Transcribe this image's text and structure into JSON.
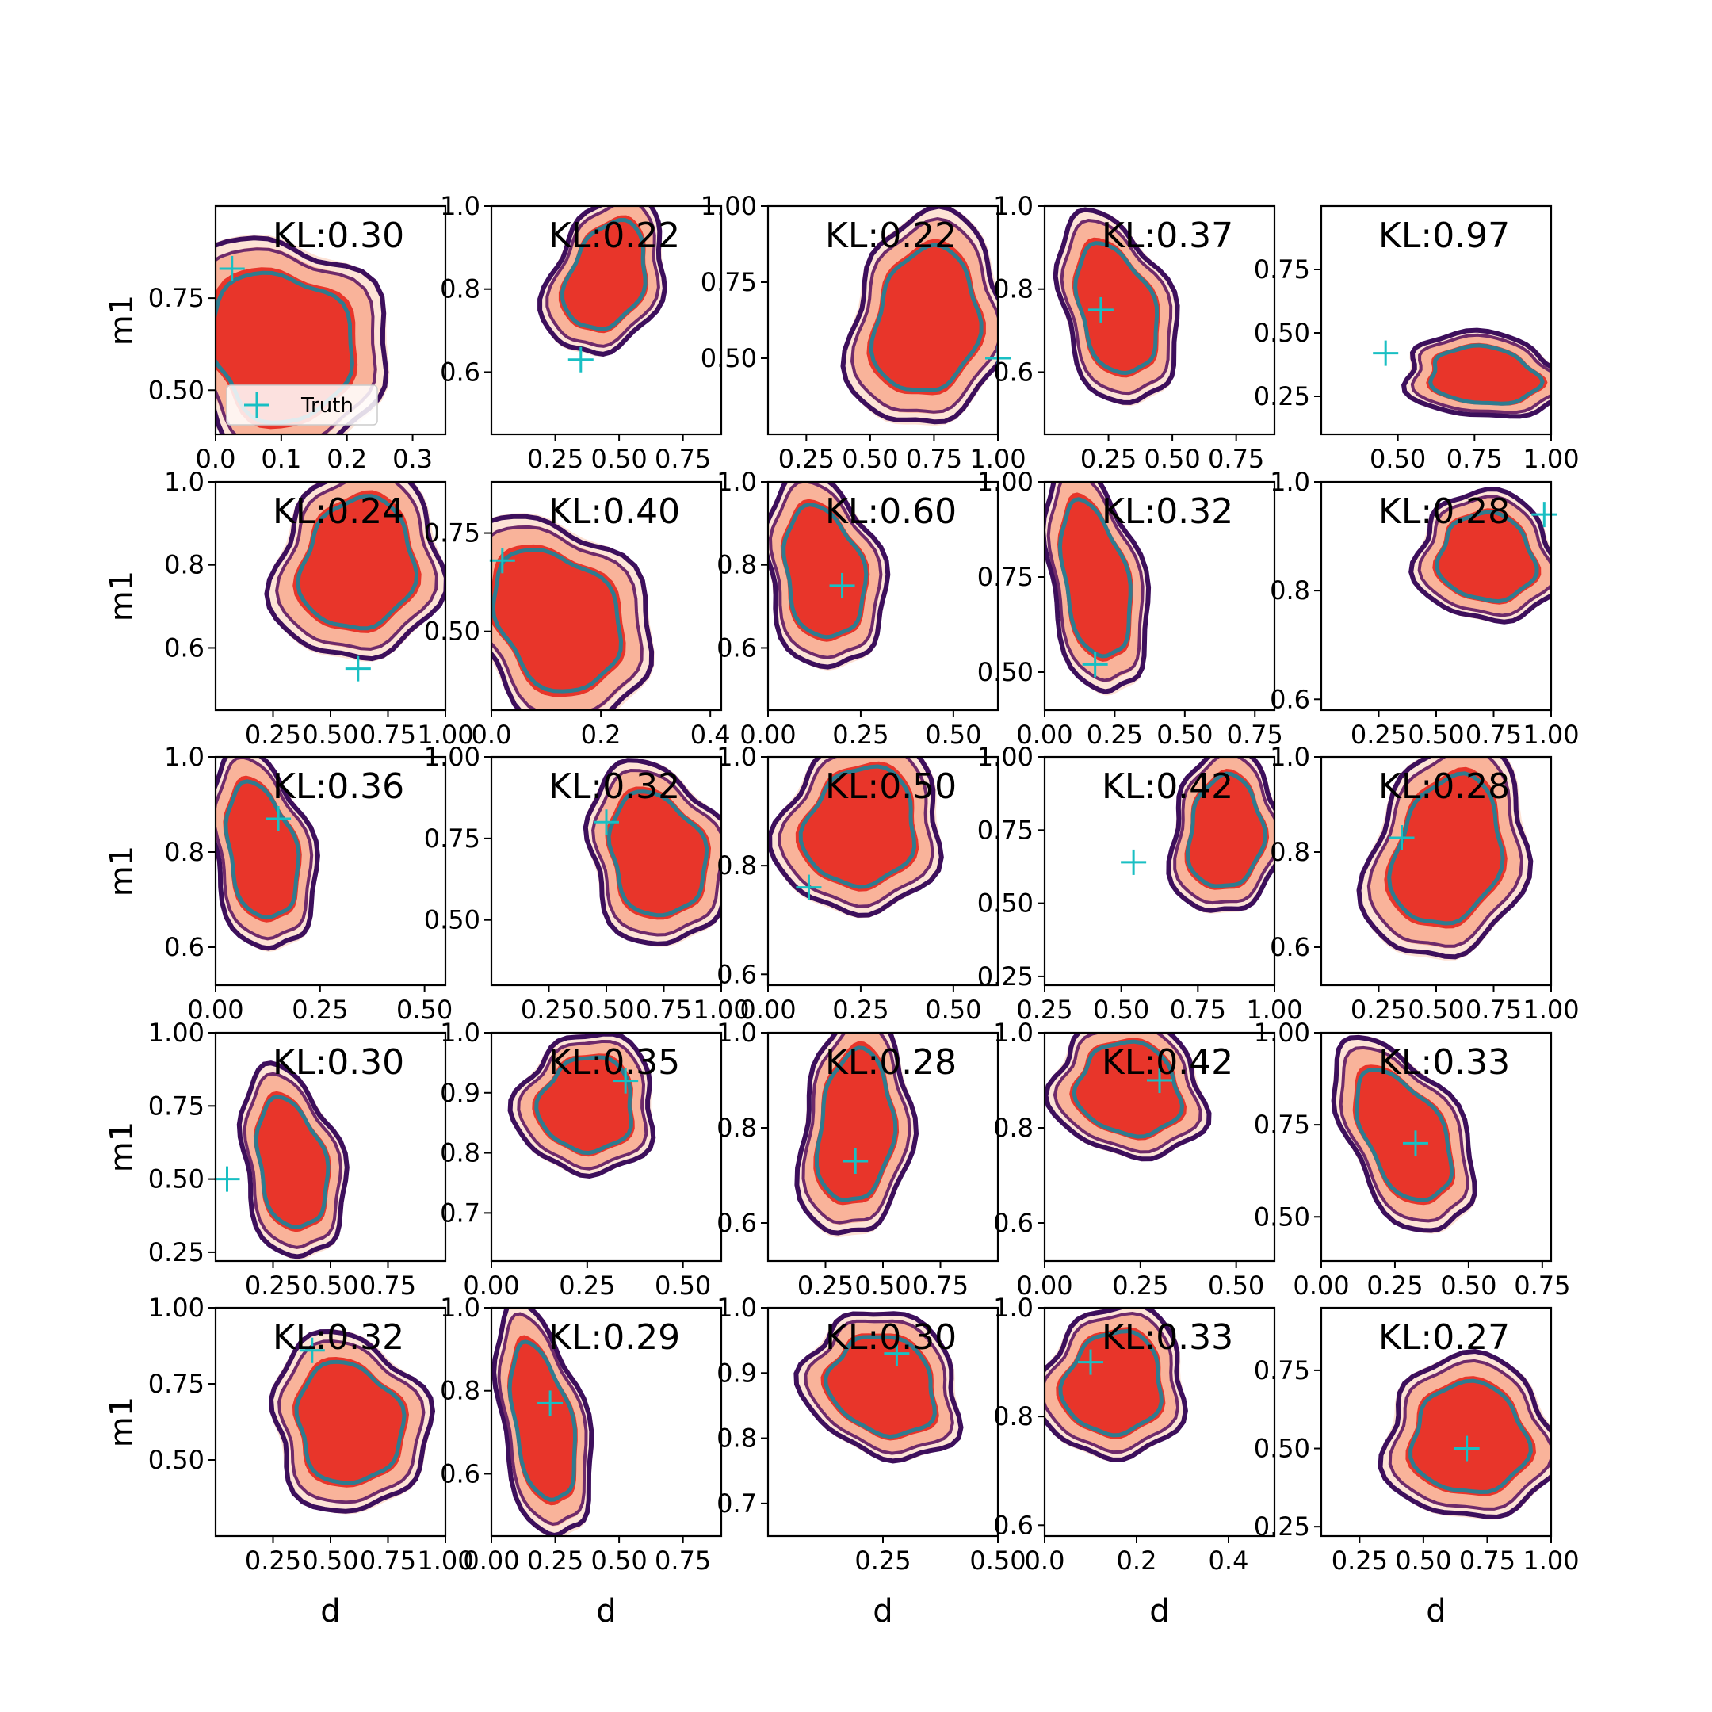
{
  "legend": {
    "label": "Truth"
  },
  "colors": {
    "fill_outer": "#fde3d6",
    "fill_mid": "#f9b39a",
    "fill_inner": "#e8352a",
    "contour_outer": "#3d0f5c",
    "contour_mid": "#6e2a6b",
    "contour_inner": "#2f7b8f",
    "truth": "#19bfc3"
  },
  "chart_data": {
    "type": "scatter",
    "description_rows": 5,
    "description_cols": 5,
    "xlabel": "d",
    "ylabel": "m1",
    "panels": [
      {
        "kl": "KL:0.30",
        "xlim": [
          0,
          0.35
        ],
        "ylim": [
          0.38,
          1.0
        ],
        "xticks": [
          0.0,
          0.1,
          0.2,
          0.3
        ],
        "xticklabels": [
          "0.0",
          "0.1",
          "0.2",
          "0.3"
        ],
        "yticks": [
          0.5,
          0.75
        ],
        "yticklabels": [
          "0.50",
          "0.75"
        ],
        "truth": [
          0.025,
          0.83
        ],
        "blob": [
          0.1,
          0.62,
          0.13,
          0.26,
          -0.6
        ]
      },
      {
        "kl": "KL:0.22",
        "xlim": [
          0,
          0.9
        ],
        "ylim": [
          0.45,
          1.0
        ],
        "xticks": [
          0.25,
          0.5,
          0.75
        ],
        "xticklabels": [
          "0.25",
          "0.50",
          "0.75"
        ],
        "yticks": [
          0.6,
          0.8,
          1.0
        ],
        "yticklabels": [
          "0.6",
          "0.8",
          "1.0"
        ],
        "truth": [
          0.35,
          0.63
        ],
        "blob": [
          0.45,
          0.83,
          0.18,
          0.17,
          0.4
        ]
      },
      {
        "kl": "KL:0.22",
        "xlim": [
          0.1,
          1.0
        ],
        "ylim": [
          0.25,
          1.0
        ],
        "xticks": [
          0.25,
          0.5,
          0.75,
          1.0
        ],
        "xticklabels": [
          "0.25",
          "0.50",
          "0.75",
          "1.00"
        ],
        "yticks": [
          0.5,
          0.75,
          1.0
        ],
        "yticklabels": [
          "0.50",
          "0.75",
          "1.00"
        ],
        "truth": [
          1.0,
          0.5
        ],
        "blob": [
          0.72,
          0.62,
          0.25,
          0.3,
          0.2
        ]
      },
      {
        "kl": "KL:0.37",
        "xlim": [
          0,
          0.9
        ],
        "ylim": [
          0.45,
          1.0
        ],
        "xticks": [
          0.25,
          0.5,
          0.75
        ],
        "xticklabels": [
          "0.25",
          "0.50",
          "0.75"
        ],
        "yticks": [
          0.6,
          0.8,
          1.0
        ],
        "yticklabels": [
          "0.6",
          "0.8",
          "1.0"
        ],
        "truth": [
          0.22,
          0.75
        ],
        "blob": [
          0.28,
          0.75,
          0.18,
          0.2,
          -0.3
        ]
      },
      {
        "kl": "KL:0.97",
        "xlim": [
          0.25,
          1.0
        ],
        "ylim": [
          0.1,
          1.0
        ],
        "xticks": [
          0.5,
          0.75,
          1.0
        ],
        "xticklabels": [
          "0.50",
          "0.75",
          "1.00"
        ],
        "yticks": [
          0.25,
          0.5,
          0.75
        ],
        "yticklabels": [
          "0.25",
          "0.50",
          "0.75"
        ],
        "truth": [
          0.46,
          0.42
        ],
        "blob": [
          0.78,
          0.33,
          0.22,
          0.14,
          0.1
        ]
      },
      {
        "kl": "KL:0.24",
        "xlim": [
          0,
          1.0
        ],
        "ylim": [
          0.45,
          1.0
        ],
        "xticks": [
          0.25,
          0.5,
          0.75,
          1.0
        ],
        "xticklabels": [
          "0.25",
          "0.50",
          "0.75",
          "1.00"
        ],
        "yticks": [
          0.6,
          0.8,
          1.0
        ],
        "yticklabels": [
          "0.6",
          "0.8",
          "1.0"
        ],
        "truth": [
          0.62,
          0.55
        ],
        "blob": [
          0.62,
          0.8,
          0.3,
          0.2,
          0.3
        ]
      },
      {
        "kl": "KL:0.40",
        "xlim": [
          0,
          0.42
        ],
        "ylim": [
          0.3,
          0.88
        ],
        "xticks": [
          0.0,
          0.2,
          0.4
        ],
        "xticklabels": [
          "0.0",
          "0.2",
          "0.4"
        ],
        "yticks": [
          0.5,
          0.75
        ],
        "yticklabels": [
          "0.50",
          "0.75"
        ],
        "truth": [
          0.02,
          0.68
        ],
        "blob": [
          0.12,
          0.53,
          0.13,
          0.24,
          -0.6
        ]
      },
      {
        "kl": "KL:0.60",
        "xlim": [
          0,
          0.62
        ],
        "ylim": [
          0.45,
          1.0
        ],
        "xticks": [
          0.0,
          0.25,
          0.5
        ],
        "xticklabels": [
          "0.00",
          "0.25",
          "0.50"
        ],
        "yticks": [
          0.6,
          0.8,
          1.0
        ],
        "yticklabels": [
          "0.6",
          "0.8",
          "1.0"
        ],
        "truth": [
          0.2,
          0.75
        ],
        "blob": [
          0.15,
          0.78,
          0.13,
          0.2,
          -0.2
        ]
      },
      {
        "kl": "KL:0.32",
        "xlim": [
          0,
          0.82
        ],
        "ylim": [
          0.4,
          1.0
        ],
        "xticks": [
          0.0,
          0.25,
          0.5,
          0.75
        ],
        "xticklabels": [
          "0.00",
          "0.25",
          "0.50",
          "0.75"
        ],
        "yticks": [
          0.5,
          0.75,
          1.0
        ],
        "yticklabels": [
          "0.50",
          "0.75",
          "1.00"
        ],
        "truth": [
          0.18,
          0.52
        ],
        "blob": [
          0.18,
          0.74,
          0.14,
          0.26,
          -0.2
        ]
      },
      {
        "kl": "KL:0.28",
        "xlim": [
          0,
          1.0
        ],
        "ylim": [
          0.58,
          1.0
        ],
        "xticks": [
          0.25,
          0.5,
          0.75,
          1.0
        ],
        "xticklabels": [
          "0.25",
          "0.50",
          "0.75",
          "1.00"
        ],
        "yticks": [
          0.6,
          0.8,
          1.0
        ],
        "yticklabels": [
          "0.6",
          "0.8",
          "1.0"
        ],
        "truth": [
          0.97,
          0.94
        ],
        "blob": [
          0.72,
          0.86,
          0.26,
          0.1,
          0.3
        ]
      },
      {
        "kl": "KL:0.36",
        "xlim": [
          0,
          0.55
        ],
        "ylim": [
          0.52,
          1.0
        ],
        "xticks": [
          0.0,
          0.25,
          0.5
        ],
        "xticklabels": [
          "0.00",
          "0.25",
          "0.50"
        ],
        "yticks": [
          0.6,
          0.8,
          1.0
        ],
        "yticklabels": [
          "0.6",
          "0.8",
          "1.0"
        ],
        "truth": [
          0.15,
          0.87
        ],
        "blob": [
          0.11,
          0.8,
          0.1,
          0.18,
          -0.2
        ]
      },
      {
        "kl": "KL:0.32",
        "xlim": [
          0,
          1.0
        ],
        "ylim": [
          0.3,
          1.0
        ],
        "xticks": [
          0.25,
          0.5,
          0.75,
          1.0
        ],
        "xticklabels": [
          "0.25",
          "0.50",
          "0.75",
          "1.00"
        ],
        "yticks": [
          0.5,
          0.75,
          1.0
        ],
        "yticklabels": [
          "0.50",
          "0.75",
          "1.00"
        ],
        "truth": [
          0.5,
          0.8
        ],
        "blob": [
          0.72,
          0.7,
          0.25,
          0.24,
          -0.3
        ]
      },
      {
        "kl": "KL:0.50",
        "xlim": [
          0,
          0.62
        ],
        "ylim": [
          0.58,
          1.0
        ],
        "xticks": [
          0.0,
          0.25,
          0.5
        ],
        "xticklabels": [
          "0.00",
          "0.25",
          "0.50"
        ],
        "yticks": [
          0.6,
          0.8,
          1.0
        ],
        "yticklabels": [
          "0.6",
          "0.8",
          "1.0"
        ],
        "truth": [
          0.11,
          0.76
        ],
        "blob": [
          0.25,
          0.87,
          0.18,
          0.14,
          0.5
        ]
      },
      {
        "kl": "KL:0.42",
        "xlim": [
          0.25,
          1.0
        ],
        "ylim": [
          0.22,
          1.0
        ],
        "xticks": [
          0.25,
          0.5,
          0.75,
          1.0
        ],
        "xticklabels": [
          "0.25",
          "0.50",
          "0.75",
          "1.00"
        ],
        "yticks": [
          0.25,
          0.5,
          0.75,
          1.0
        ],
        "yticklabels": [
          "0.25",
          "0.50",
          "0.75",
          "1.00"
        ],
        "truth": [
          0.54,
          0.64
        ],
        "blob": [
          0.84,
          0.74,
          0.15,
          0.24,
          0.1
        ]
      },
      {
        "kl": "KL:0.28",
        "xlim": [
          0,
          1.0
        ],
        "ylim": [
          0.52,
          1.0
        ],
        "xticks": [
          0.25,
          0.5,
          0.75,
          1.0
        ],
        "xticklabels": [
          "0.25",
          "0.50",
          "0.75",
          "1.00"
        ],
        "yticks": [
          0.6,
          0.8,
          1.0
        ],
        "yticklabels": [
          "0.6",
          "0.8",
          "1.0"
        ],
        "truth": [
          0.35,
          0.83
        ],
        "blob": [
          0.55,
          0.8,
          0.28,
          0.2,
          0.3
        ]
      },
      {
        "kl": "KL:0.30",
        "xlim": [
          0,
          1.0
        ],
        "ylim": [
          0.22,
          1.0
        ],
        "xticks": [
          0.25,
          0.5,
          0.75
        ],
        "xticklabels": [
          "0.25",
          "0.50",
          "0.75"
        ],
        "yticks": [
          0.25,
          0.5,
          0.75,
          1.0
        ],
        "yticklabels": [
          "0.25",
          "0.50",
          "0.75",
          "1.00"
        ],
        "truth": [
          0.05,
          0.5
        ],
        "blob": [
          0.33,
          0.55,
          0.18,
          0.28,
          -0.2
        ]
      },
      {
        "kl": "KL:0.35",
        "xlim": [
          0,
          0.6
        ],
        "ylim": [
          0.62,
          1.0
        ],
        "xticks": [
          0.0,
          0.25,
          0.5
        ],
        "xticklabels": [
          "0.00",
          "0.25",
          "0.50"
        ],
        "yticks": [
          0.7,
          0.8,
          0.9,
          1.0
        ],
        "yticklabels": [
          "0.7",
          "0.8",
          "0.9",
          "1.0"
        ],
        "truth": [
          0.35,
          0.92
        ],
        "blob": [
          0.25,
          0.88,
          0.15,
          0.1,
          0.6
        ]
      },
      {
        "kl": "KL:0.28",
        "xlim": [
          0,
          1.0
        ],
        "ylim": [
          0.52,
          1.0
        ],
        "xticks": [
          0.25,
          0.5,
          0.75
        ],
        "xticklabels": [
          "0.25",
          "0.50",
          "0.75"
        ],
        "yticks": [
          0.6,
          0.8,
          1.0
        ],
        "yticklabels": [
          "0.6",
          "0.8",
          "1.0"
        ],
        "truth": [
          0.38,
          0.73
        ],
        "blob": [
          0.38,
          0.8,
          0.2,
          0.2,
          0.1
        ]
      },
      {
        "kl": "KL:0.42",
        "xlim": [
          0,
          0.6
        ],
        "ylim": [
          0.52,
          1.0
        ],
        "xticks": [
          0.0,
          0.25,
          0.5
        ],
        "xticklabels": [
          "0.00",
          "0.25",
          "0.50"
        ],
        "yticks": [
          0.6,
          0.8,
          1.0
        ],
        "yticklabels": [
          "0.6",
          "0.8",
          "1.0"
        ],
        "truth": [
          0.3,
          0.9
        ],
        "blob": [
          0.22,
          0.88,
          0.17,
          0.12,
          0.4
        ]
      },
      {
        "kl": "KL:0.33",
        "xlim": [
          0,
          0.78
        ],
        "ylim": [
          0.38,
          1.0
        ],
        "xticks": [
          0.0,
          0.25,
          0.5,
          0.75
        ],
        "xticklabels": [
          "0.00",
          "0.25",
          "0.50",
          "0.75"
        ],
        "yticks": [
          0.5,
          0.75,
          1.0
        ],
        "yticklabels": [
          "0.50",
          "0.75",
          "1.00"
        ],
        "truth": [
          0.32,
          0.7
        ],
        "blob": [
          0.28,
          0.72,
          0.16,
          0.24,
          -0.5
        ]
      },
      {
        "kl": "KL:0.32",
        "xlim": [
          0,
          1.0
        ],
        "ylim": [
          0.25,
          1.0
        ],
        "xticks": [
          0.25,
          0.5,
          0.75,
          1.0
        ],
        "xticklabels": [
          "0.25",
          "0.50",
          "0.75",
          "1.00"
        ],
        "yticks": [
          0.5,
          0.75,
          1.0
        ],
        "yticklabels": [
          "0.50",
          "0.75",
          "1.00"
        ],
        "truth": [
          0.42,
          0.86
        ],
        "blob": [
          0.58,
          0.62,
          0.28,
          0.25,
          -0.3
        ]
      },
      {
        "kl": "KL:0.29",
        "xlim": [
          0,
          0.9
        ],
        "ylim": [
          0.45,
          1.0
        ],
        "xticks": [
          0.0,
          0.25,
          0.5,
          0.75
        ],
        "xticklabels": [
          "0.00",
          "0.25",
          "0.50",
          "0.75"
        ],
        "yticks": [
          0.6,
          0.8,
          1.0
        ],
        "yticklabels": [
          "0.6",
          "0.8",
          "1.0"
        ],
        "truth": [
          0.23,
          0.77
        ],
        "blob": [
          0.2,
          0.72,
          0.14,
          0.24,
          -0.2
        ]
      },
      {
        "kl": "KL:0.30",
        "xlim": [
          0,
          0.5
        ],
        "ylim": [
          0.65,
          1.0
        ],
        "xticks": [
          0.25,
          0.5
        ],
        "xticklabels": [
          "0.25",
          "0.50"
        ],
        "yticks": [
          0.7,
          0.8,
          0.9,
          1.0
        ],
        "yticklabels": [
          "0.7",
          "0.8",
          "0.9",
          "1.0"
        ],
        "truth": [
          0.28,
          0.93
        ],
        "blob": [
          0.25,
          0.88,
          0.15,
          0.09,
          0.6
        ]
      },
      {
        "kl": "KL:0.33",
        "xlim": [
          0,
          0.5
        ],
        "ylim": [
          0.58,
          1.0
        ],
        "xticks": [
          0.0,
          0.2,
          0.4
        ],
        "xticklabels": [
          "0.0",
          "0.2",
          "0.4"
        ],
        "yticks": [
          0.6,
          0.8,
          1.0
        ],
        "yticklabels": [
          "0.6",
          "0.8",
          "1.0"
        ],
        "truth": [
          0.1,
          0.9
        ],
        "blob": [
          0.15,
          0.86,
          0.13,
          0.12,
          0.5
        ]
      },
      {
        "kl": "KL:0.27",
        "xlim": [
          0.1,
          1.0
        ],
        "ylim": [
          0.22,
          0.95
        ],
        "xticks": [
          0.25,
          0.5,
          0.75,
          1.0
        ],
        "xticklabels": [
          "0.25",
          "0.50",
          "0.75",
          "1.00"
        ],
        "yticks": [
          0.25,
          0.5,
          0.75
        ],
        "yticklabels": [
          "0.25",
          "0.50",
          "0.75"
        ],
        "truth": [
          0.67,
          0.5
        ],
        "blob": [
          0.68,
          0.53,
          0.28,
          0.22,
          0.2
        ]
      }
    ]
  }
}
